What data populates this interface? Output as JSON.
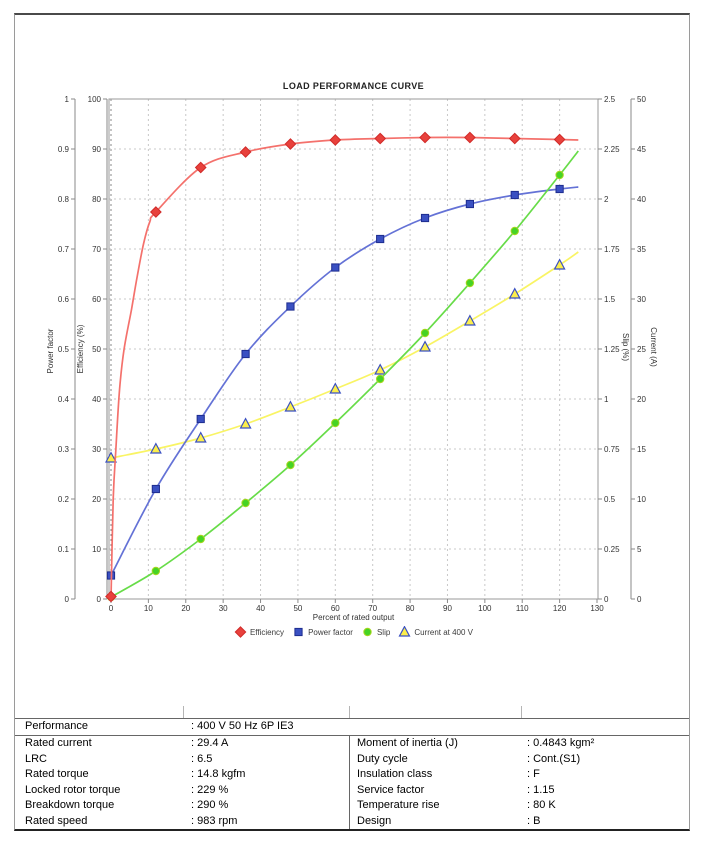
{
  "chart_data": {
    "type": "line",
    "title": "LOAD PERFORMANCE CURVE",
    "xlabel": "Percent of rated output",
    "x_axis": {
      "min": 0,
      "max": 130,
      "tick_step": 10
    },
    "axes": {
      "power_factor": {
        "label": "Power factor",
        "min": 0,
        "max": 1,
        "tick_step": 0.1,
        "side": "left"
      },
      "efficiency": {
        "label": "Efficiency (%)",
        "min": 0,
        "max": 100,
        "tick_step": 10,
        "side": "left"
      },
      "slip": {
        "label": "Slip (%)",
        "min": 0,
        "max": 2.5,
        "tick_step": 0.25,
        "side": "right"
      },
      "current": {
        "label": "Current (A)",
        "min": 0,
        "max": 50,
        "tick_step": 5,
        "side": "right"
      }
    },
    "x": [
      0,
      12,
      24,
      36,
      48,
      60,
      72,
      84,
      96,
      108,
      120
    ],
    "series": [
      {
        "name": "Efficiency",
        "axis": "efficiency",
        "marker": "diamond",
        "color": "#e8413c",
        "line_color": "#f4716c",
        "edge_color": "#d02a28",
        "values": [
          0.5,
          77.4,
          86.3,
          89.4,
          91.0,
          91.8,
          92.1,
          92.3,
          92.3,
          92.1,
          91.9
        ],
        "line_points": [
          [
            0,
            0
          ],
          [
            0.6,
            20
          ],
          [
            1.3,
            30
          ],
          [
            2.3,
            42
          ],
          [
            3.5,
            50
          ],
          [
            5.5,
            58
          ],
          [
            7,
            64.5
          ],
          [
            8.7,
            71
          ],
          [
            10.4,
            75.5
          ],
          [
            12,
            77.4
          ],
          [
            24,
            86.3
          ],
          [
            36,
            89.4
          ],
          [
            48,
            91.0
          ],
          [
            60,
            91.8
          ],
          [
            72,
            92.1
          ],
          [
            84,
            92.3
          ],
          [
            96,
            92.3
          ],
          [
            108,
            92.1
          ],
          [
            120,
            91.9
          ],
          [
            125,
            91.8
          ]
        ]
      },
      {
        "name": "Power factor",
        "axis": "power_factor",
        "marker": "square",
        "color": "#3a50c2",
        "line_color": "#6472d6",
        "edge_color": "#1e2d8f",
        "values": [
          0.047,
          0.22,
          0.36,
          0.49,
          0.585,
          0.663,
          0.72,
          0.762,
          0.79,
          0.808,
          0.82
        ],
        "line_points": [
          [
            0,
            0.047
          ],
          [
            12,
            0.22
          ],
          [
            24,
            0.36
          ],
          [
            36,
            0.49
          ],
          [
            48,
            0.585
          ],
          [
            60,
            0.663
          ],
          [
            72,
            0.72
          ],
          [
            84,
            0.762
          ],
          [
            96,
            0.79
          ],
          [
            108,
            0.808
          ],
          [
            120,
            0.82
          ],
          [
            125,
            0.824
          ]
        ]
      },
      {
        "name": "Slip",
        "axis": "slip",
        "marker": "circle",
        "color": "#46d324",
        "line_color": "#67dc48",
        "edge_color": "#a7d61f",
        "values": [
          0.01,
          0.14,
          0.3,
          0.48,
          0.67,
          0.88,
          1.1,
          1.33,
          1.58,
          1.84,
          2.12
        ],
        "line_points": [
          [
            0,
            0.01
          ],
          [
            12,
            0.14
          ],
          [
            24,
            0.3
          ],
          [
            36,
            0.48
          ],
          [
            48,
            0.67
          ],
          [
            60,
            0.88
          ],
          [
            72,
            1.1
          ],
          [
            84,
            1.33
          ],
          [
            96,
            1.58
          ],
          [
            108,
            1.84
          ],
          [
            120,
            2.12
          ],
          [
            125,
            2.24
          ]
        ]
      },
      {
        "name": "Current at 400 V",
        "axis": "current",
        "marker": "triangle",
        "color": "#fcee4b",
        "line_color": "#f9f464",
        "edge_color": "#3a50c2",
        "values": [
          14.1,
          15.0,
          16.1,
          17.5,
          19.2,
          21.0,
          22.9,
          25.2,
          27.8,
          30.5,
          33.4
        ],
        "line_points": [
          [
            0,
            14.1
          ],
          [
            12,
            15.0
          ],
          [
            24,
            16.1
          ],
          [
            36,
            17.5
          ],
          [
            48,
            19.2
          ],
          [
            60,
            21.0
          ],
          [
            72,
            22.9
          ],
          [
            84,
            25.2
          ],
          [
            96,
            27.8
          ],
          [
            108,
            30.5
          ],
          [
            120,
            33.4
          ],
          [
            125,
            34.7
          ]
        ]
      }
    ],
    "draw_order": [
      3,
      1,
      2,
      0
    ],
    "legend": [
      "Efficiency",
      "Power factor",
      "Slip",
      "Current at 400 V"
    ],
    "colors": {
      "grid": "#c8c8c8",
      "zero_line": "#8a8a8a",
      "frame": "#9a9a9a",
      "axis": "#8a8a8a",
      "text": "#333333"
    }
  },
  "table": {
    "performance_row": {
      "label": "Performance",
      "value": ": 400 V 50 Hz 6P IE3"
    },
    "rows": [
      {
        "l1": "Rated current",
        "v1": ": 29.4 A",
        "l2": "Moment of inertia (J)",
        "v2": ": 0.4843 kgm²"
      },
      {
        "l1": "LRC",
        "v1": ": 6.5",
        "l2": "Duty cycle",
        "v2": ": Cont.(S1)"
      },
      {
        "l1": "Rated torque",
        "v1": ": 14.8 kgfm",
        "l2": "Insulation class",
        "v2": ": F"
      },
      {
        "l1": "Locked rotor torque",
        "v1": ": 229 %",
        "l2": "Service factor",
        "v2": ": 1.15"
      },
      {
        "l1": "Breakdown torque",
        "v1": ": 290 %",
        "l2": "Temperature rise",
        "v2": ": 80 K"
      },
      {
        "l1": "Rated speed",
        "v1": ": 983 rpm",
        "l2": "Design",
        "v2": ": B"
      }
    ]
  }
}
